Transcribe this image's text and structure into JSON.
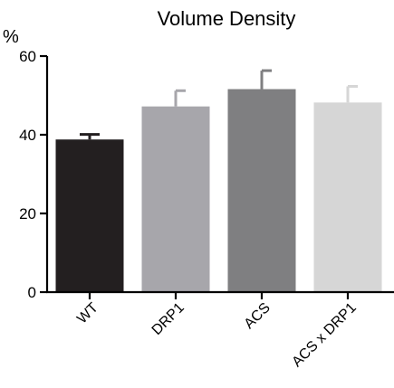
{
  "chart_data": {
    "type": "bar",
    "title": "Volume Density",
    "ylabel": "%",
    "xlabel": "",
    "categories": [
      "WT",
      "DRP1",
      "ACS",
      "ACS x DRP1"
    ],
    "values": [
      38.8,
      47.2,
      51.6,
      48.2
    ],
    "errors": [
      1.3,
      4.0,
      4.7,
      4.1
    ],
    "colors": [
      "#231f20",
      "#a7a6ab",
      "#7f7f81",
      "#d6d6d6"
    ],
    "ylim": [
      0,
      60
    ],
    "yticks": [
      0,
      20,
      40,
      60
    ],
    "grid": false,
    "legend": "none"
  }
}
